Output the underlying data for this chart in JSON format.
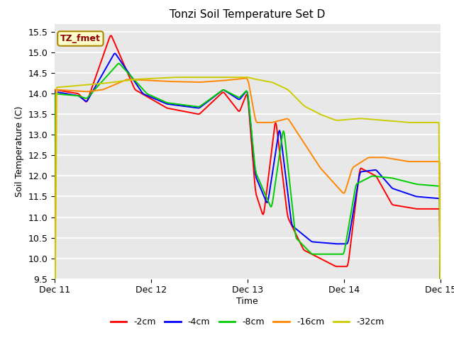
{
  "title": "Tonzi Soil Temperature Set D",
  "xlabel": "Time",
  "ylabel": "Soil Temperature (C)",
  "ylim": [
    9.5,
    15.7
  ],
  "background_color": "#e8e8e8",
  "annotation_text": "TZ_fmet",
  "annotation_color": "#8b0000",
  "annotation_bg": "#ffffcc",
  "series": {
    "-2cm": {
      "color": "#ff0000"
    },
    "-4cm": {
      "color": "#0000ff"
    },
    "-8cm": {
      "color": "#00cc00"
    },
    "-16cm": {
      "color": "#ff8800"
    },
    "-32cm": {
      "color": "#cccc00"
    }
  },
  "x_ticks": [
    0,
    24,
    48,
    72,
    96
  ],
  "x_tick_labels": [
    "Dec 11",
    "Dec 12",
    "Dec 13",
    "Dec 14",
    "Dec 15"
  ],
  "y_ticks": [
    9.5,
    10.0,
    10.5,
    11.0,
    11.5,
    12.0,
    12.5,
    13.0,
    13.5,
    14.0,
    14.5,
    15.0,
    15.5
  ]
}
